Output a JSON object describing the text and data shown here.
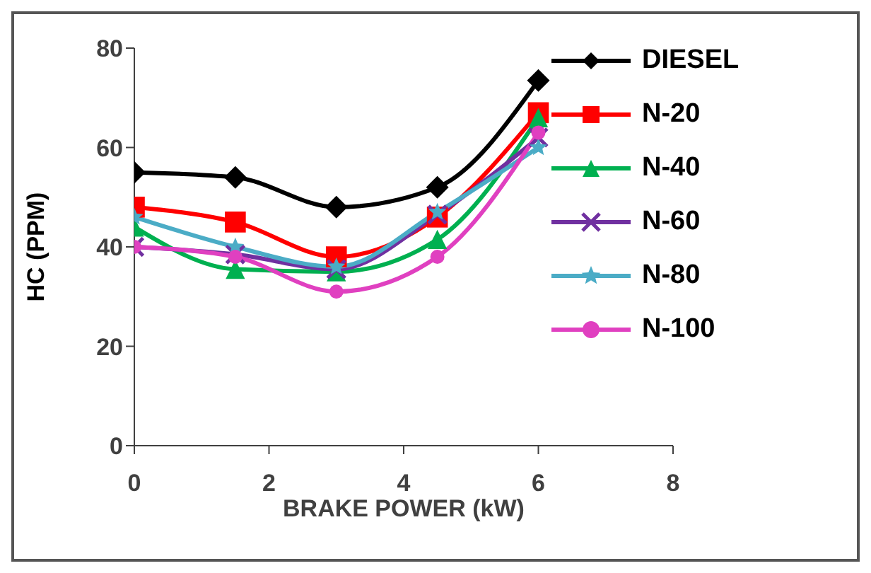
{
  "chart_data": {
    "type": "line",
    "xlabel": "BRAKE POWER (kW)",
    "ylabel": "HC (PPM)",
    "x": [
      0,
      1.5,
      3,
      4.5,
      6
    ],
    "xlim": [
      0,
      8
    ],
    "xticks": [
      0,
      2,
      4,
      6,
      8
    ],
    "ylim": [
      0,
      80
    ],
    "yticks": [
      0,
      20,
      40,
      60,
      80
    ],
    "legend": "top right",
    "series": [
      {
        "name": "DIESEL",
        "color": "#000000",
        "marker": "diamond",
        "values": [
          55,
          54,
          48,
          52,
          73.5
        ]
      },
      {
        "name": "N-20",
        "color": "#ff0000",
        "marker": "square",
        "values": [
          48,
          45,
          38,
          46,
          67
        ]
      },
      {
        "name": "N-40",
        "color": "#00b050",
        "marker": "triangle",
        "values": [
          44,
          35.5,
          35,
          41.5,
          66
        ]
      },
      {
        "name": "N-60",
        "color": "#7030a0",
        "marker": "cross",
        "values": [
          40,
          38.5,
          35.5,
          46.5,
          62
        ]
      },
      {
        "name": "N-80",
        "color": "#4bacc6",
        "marker": "star",
        "values": [
          46,
          40,
          36,
          47,
          60
        ]
      },
      {
        "name": "N-100",
        "color": "#e040c0",
        "marker": "circle",
        "values": [
          40,
          38,
          31,
          38,
          63
        ]
      }
    ]
  }
}
